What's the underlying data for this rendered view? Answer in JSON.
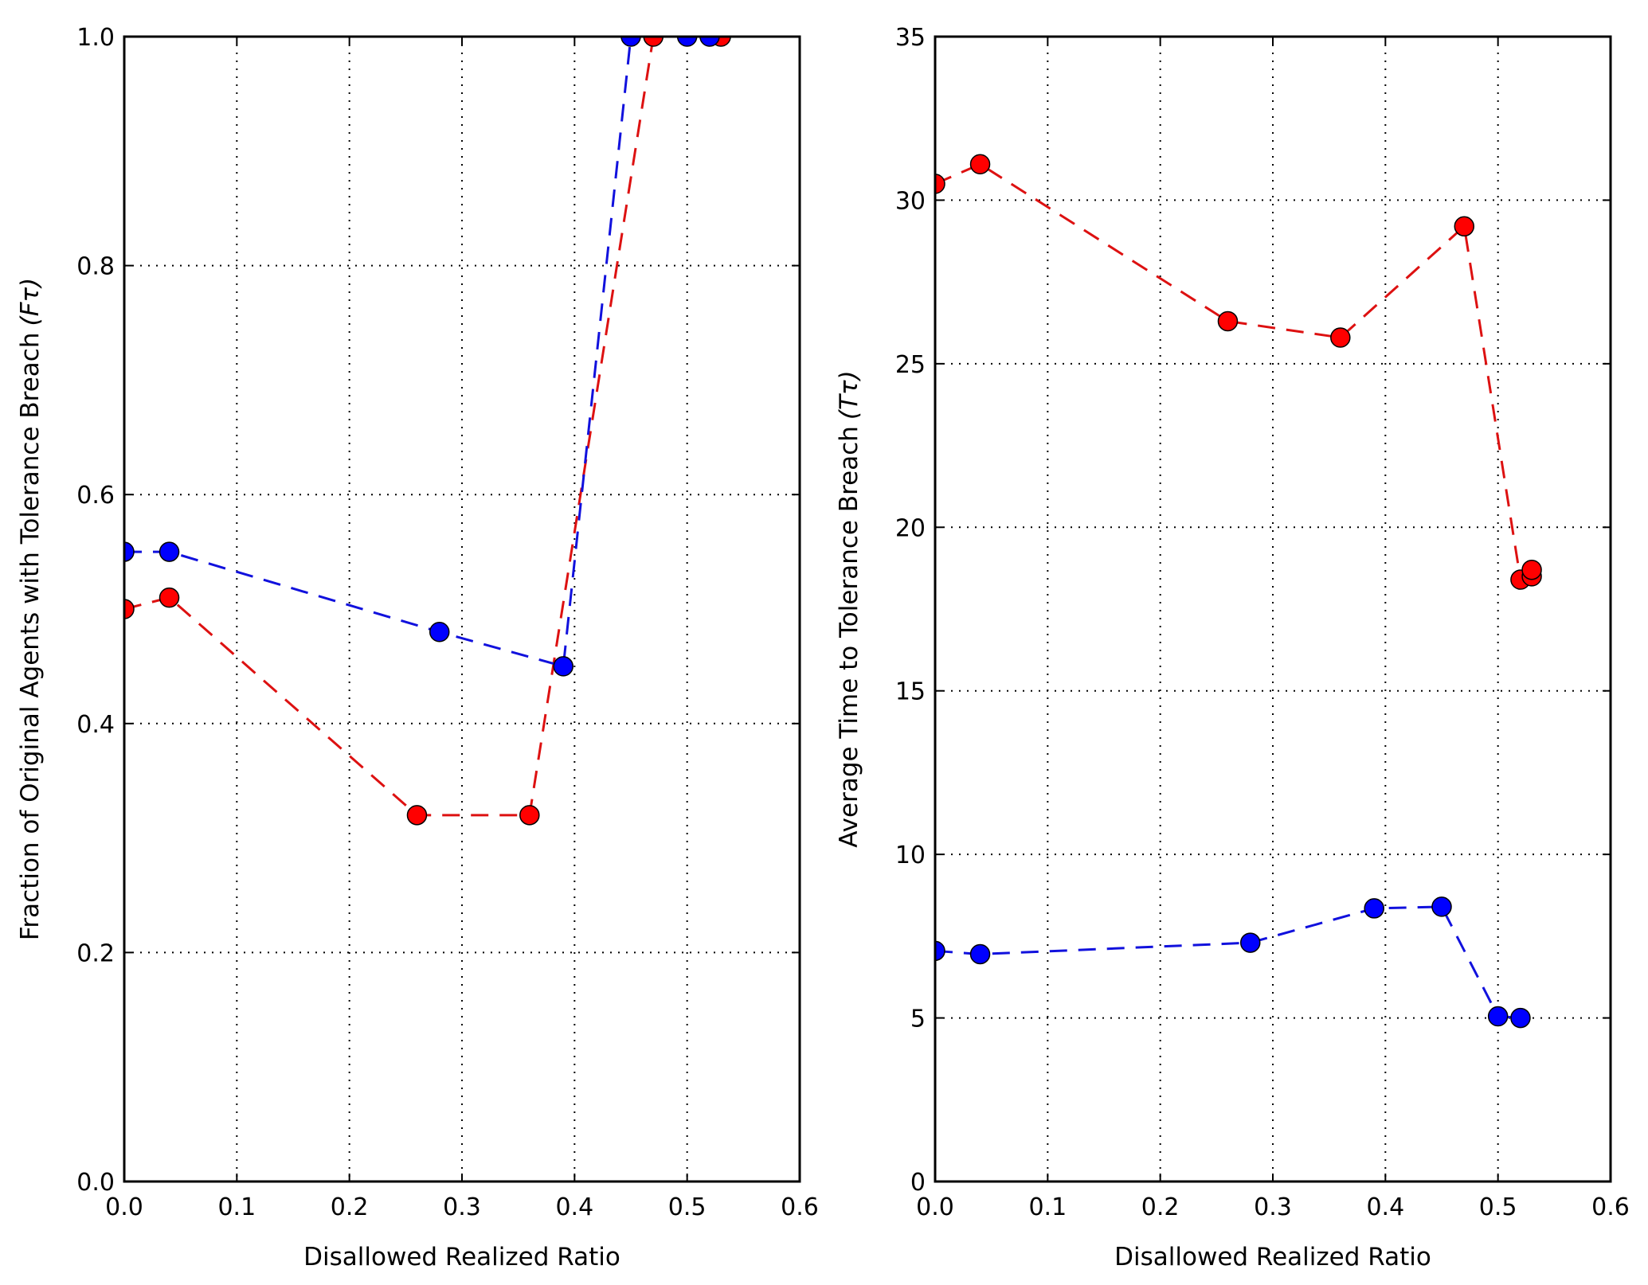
{
  "chart_data": [
    {
      "type": "scatter",
      "title": "",
      "xlabel": "Disallowed Realized Ratio",
      "ylabel": "Fraction of Original Agents with Tolerance Breach",
      "ylabel_symbol": "(Fτ)",
      "xlim": [
        0.0,
        0.6
      ],
      "ylim": [
        0.0,
        1.0
      ],
      "xticks": [
        "0.0",
        "0.1",
        "0.2",
        "0.3",
        "0.4",
        "0.5",
        "0.6"
      ],
      "yticks": [
        "0.0",
        "0.2",
        "0.4",
        "0.6",
        "0.8",
        "1.0"
      ],
      "grid": true,
      "series": [
        {
          "name": "red",
          "color": "#ff0000",
          "line_color": "#dd1111",
          "x": [
            0.0,
            0.04,
            0.26,
            0.36,
            0.47,
            0.53
          ],
          "y": [
            0.5,
            0.51,
            0.32,
            0.32,
            1.0,
            1.0
          ]
        },
        {
          "name": "blue",
          "color": "#0000ff",
          "line_color": "#1111dd",
          "x": [
            0.0,
            0.04,
            0.28,
            0.39,
            0.45,
            0.5,
            0.52
          ],
          "y": [
            0.55,
            0.55,
            0.48,
            0.45,
            1.0,
            1.0,
            1.0
          ]
        }
      ]
    },
    {
      "type": "scatter",
      "title": "",
      "xlabel": "Disallowed Realized Ratio",
      "ylabel": "Average Time to Tolerance Breach",
      "ylabel_symbol": "(Tτ)",
      "xlim": [
        0.0,
        0.6
      ],
      "ylim": [
        0,
        35
      ],
      "xticks": [
        "0.0",
        "0.1",
        "0.2",
        "0.3",
        "0.4",
        "0.5",
        "0.6"
      ],
      "yticks": [
        "0",
        "5",
        "10",
        "15",
        "20",
        "25",
        "30",
        "35"
      ],
      "grid": true,
      "series": [
        {
          "name": "red",
          "color": "#ff0000",
          "line_color": "#dd1111",
          "x": [
            0.0,
            0.04,
            0.26,
            0.36,
            0.47,
            0.52,
            0.53,
            0.53
          ],
          "y": [
            30.5,
            31.1,
            26.3,
            25.8,
            29.2,
            18.4,
            18.5,
            18.7
          ]
        },
        {
          "name": "blue",
          "color": "#0000ff",
          "line_color": "#1111dd",
          "x": [
            0.0,
            0.04,
            0.28,
            0.39,
            0.45,
            0.5,
            0.52
          ],
          "y": [
            7.05,
            6.95,
            7.3,
            8.35,
            8.4,
            5.05,
            5.0
          ]
        }
      ]
    }
  ]
}
